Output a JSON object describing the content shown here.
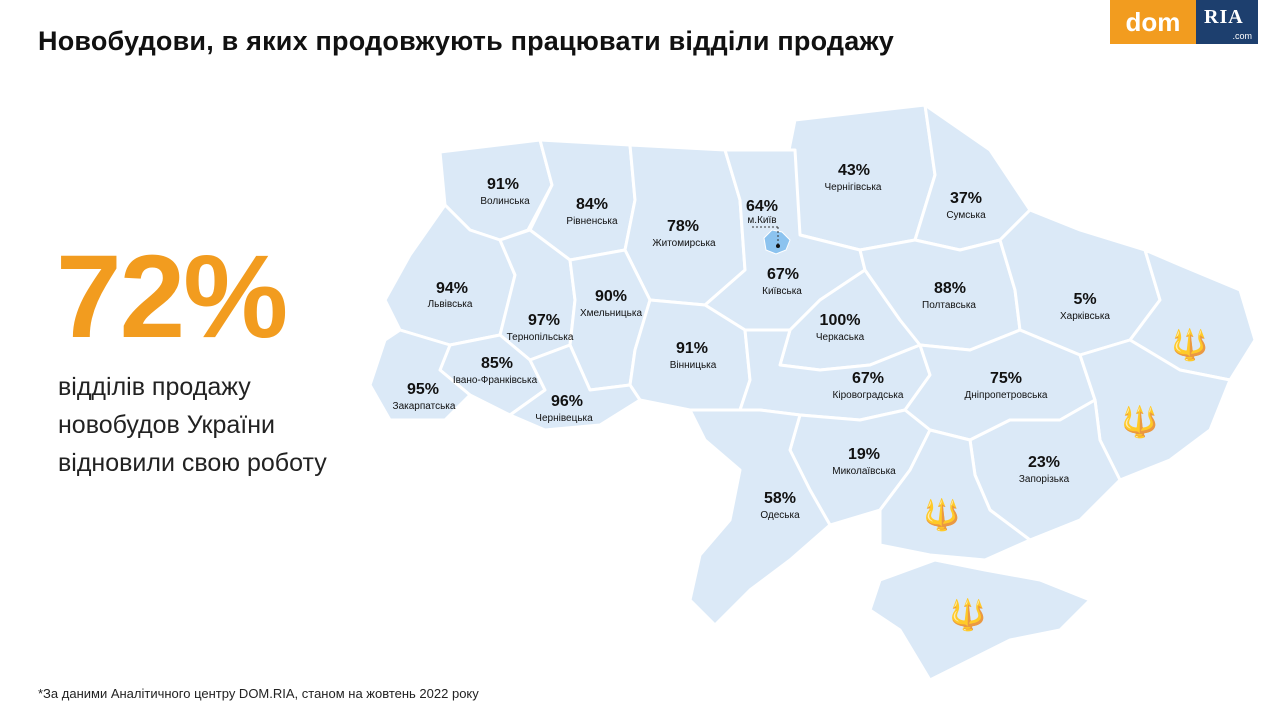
{
  "title": "Новобудови, в яких продовжують працювати відділи продажу",
  "logo": {
    "dom": "dom",
    "ria": "RIA",
    "com": ".com"
  },
  "headline": {
    "value": "72%",
    "lines": [
      "відділів продажу",
      "новобудов України",
      "відновили свою роботу"
    ]
  },
  "footnote": "*За даними Аналітичного центру DOM.RIA, станом на жовтень 2022 року",
  "colors": {
    "accent": "#f29c1f",
    "map_fill": "#dbe9f7",
    "brand_dark": "#1d3f6e"
  },
  "regions": [
    {
      "name": "Волинська",
      "pct": "91%"
    },
    {
      "name": "Рівненська",
      "pct": "84%"
    },
    {
      "name": "Житомирська",
      "pct": "78%"
    },
    {
      "name": "м.Київ",
      "pct": "64%"
    },
    {
      "name": "Чернігівська",
      "pct": "43%"
    },
    {
      "name": "Сумська",
      "pct": "37%"
    },
    {
      "name": "Львівська",
      "pct": "94%"
    },
    {
      "name": "Хмельницька",
      "pct": "90%"
    },
    {
      "name": "Тернопільська",
      "pct": "97%"
    },
    {
      "name": "Київська",
      "pct": "67%"
    },
    {
      "name": "Полтавська",
      "pct": "88%"
    },
    {
      "name": "Харківська",
      "pct": "5%"
    },
    {
      "name": "Черкаська",
      "pct": "100%"
    },
    {
      "name": "Івано-Франківська",
      "pct": "85%"
    },
    {
      "name": "Вінницька",
      "pct": "91%"
    },
    {
      "name": "Закарпатська",
      "pct": "95%"
    },
    {
      "name": "Чернівецька",
      "pct": "96%"
    },
    {
      "name": "Кіровоградська",
      "pct": "67%"
    },
    {
      "name": "Дніпропетровська",
      "pct": "75%"
    },
    {
      "name": "Миколаївська",
      "pct": "19%"
    },
    {
      "name": "Запорізька",
      "pct": "23%"
    },
    {
      "name": "Одеська",
      "pct": "58%"
    }
  ]
}
